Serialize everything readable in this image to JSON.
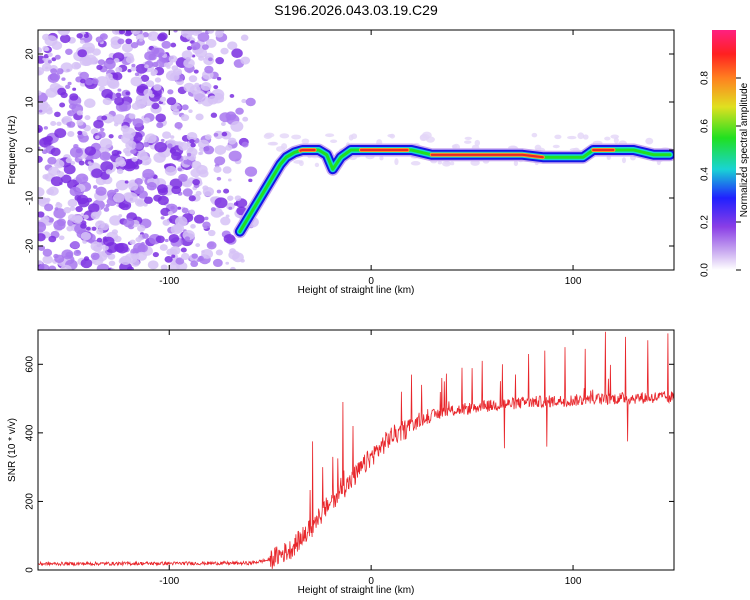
{
  "title": "S196.2026.043.03.19.C29",
  "colors": {
    "snr_line": "#e8262b",
    "ridge_outer": "#1414e6",
    "ridge_mid": "#19d4d4",
    "ridge_core": "#e8262b",
    "noise": "#8a3ee6"
  },
  "chart_data": [
    {
      "type": "heatmap",
      "name": "spectrogram",
      "xlabel": "Height of straight line (km)",
      "ylabel": "Frequency (Hz)",
      "xlim": [
        -165,
        150
      ],
      "ylim": [
        -25,
        25
      ],
      "x_ticks": [
        -100,
        0,
        100
      ],
      "x_tick_labels": [
        "-100",
        "0",
        "100"
      ],
      "y_ticks": [
        -20,
        -10,
        0,
        10,
        20
      ],
      "y_tick_labels": [
        "-20",
        "-10",
        "0",
        "10",
        "20"
      ],
      "ridge": {
        "x": [
          -65,
          -60,
          -55,
          -50,
          -45,
          -42,
          -38,
          -34,
          -30,
          -26,
          -22,
          -19,
          -15,
          -10,
          -5,
          0,
          10,
          20,
          30,
          45,
          60,
          75,
          85,
          95,
          105,
          110,
          120,
          130,
          140,
          148
        ],
        "y": [
          -17,
          -13.5,
          -10,
          -6.5,
          -3,
          -1.5,
          -0.5,
          0,
          0,
          0,
          -1,
          -4,
          -1.5,
          0,
          0,
          0,
          0,
          0,
          -1,
          -1,
          -1,
          -1,
          -1.5,
          -1.5,
          -1.5,
          0,
          0,
          0,
          -1,
          -1
        ],
        "peak_amplitude_segments": [
          {
            "x_start": -35,
            "x_end": -28
          },
          {
            "x_start": -5,
            "x_end": 18
          },
          {
            "x_start": 30,
            "x_end": 85
          },
          {
            "x_start": 110,
            "x_end": 120
          }
        ]
      },
      "noise_region_x": [
        -165,
        -55
      ],
      "colorbar": {
        "label": "Normalized spectral amplitude",
        "range": [
          0,
          1
        ],
        "ticks": [
          0.0,
          0.2,
          0.4,
          0.6,
          0.8
        ],
        "tick_labels": [
          "0.0",
          "0.2",
          "0.4",
          "0.6",
          "0.8"
        ],
        "colormap": [
          "#ffffff",
          "#c8a8f0",
          "#8a3ee6",
          "#2020ff",
          "#19d4d4",
          "#20e020",
          "#e0e020",
          "#ff8020",
          "#ff2020",
          "#ff2080"
        ]
      }
    },
    {
      "type": "line",
      "name": "snr",
      "xlabel": "Height of straight line (km)",
      "ylabel": "SNR (10 * v/v)",
      "xlim": [
        -165,
        150
      ],
      "ylim": [
        0,
        700
      ],
      "x_ticks": [
        -100,
        0,
        100
      ],
      "x_tick_labels": [
        "-100",
        "0",
        "100"
      ],
      "y_ticks": [
        0,
        200,
        400,
        600
      ],
      "y_tick_labels": [
        "0",
        "200",
        "400",
        "600"
      ],
      "baseline": {
        "x": [
          -165,
          -60,
          -50,
          -40,
          -30,
          -20,
          -10,
          0,
          10,
          20,
          30,
          40,
          60,
          80,
          100,
          120,
          150
        ],
        "y": [
          18,
          20,
          30,
          60,
          120,
          200,
          260,
          330,
          390,
          420,
          450,
          465,
          480,
          490,
          495,
          500,
          505
        ]
      },
      "spikes": [
        {
          "x": -29,
          "y": 375
        },
        {
          "x": -24,
          "y": 300
        },
        {
          "x": -19,
          "y": 330
        },
        {
          "x": -14,
          "y": 490
        },
        {
          "x": -9,
          "y": 420
        },
        {
          "x": 15,
          "y": 520
        },
        {
          "x": 20,
          "y": 570
        },
        {
          "x": 25,
          "y": 540
        },
        {
          "x": 35,
          "y": 560
        },
        {
          "x": 45,
          "y": 590
        },
        {
          "x": 55,
          "y": 610
        },
        {
          "x": 65,
          "y": 600
        },
        {
          "x": 78,
          "y": 630
        },
        {
          "x": 86,
          "y": 640
        },
        {
          "x": 96,
          "y": 650
        },
        {
          "x": 106,
          "y": 645
        },
        {
          "x": 116,
          "y": 695
        },
        {
          "x": 126,
          "y": 680
        },
        {
          "x": 137,
          "y": 670
        },
        {
          "x": 147,
          "y": 690
        }
      ],
      "dips": [
        {
          "x": 87,
          "y": 360
        },
        {
          "x": 127,
          "y": 375
        },
        {
          "x": 66,
          "y": 355
        }
      ]
    }
  ]
}
